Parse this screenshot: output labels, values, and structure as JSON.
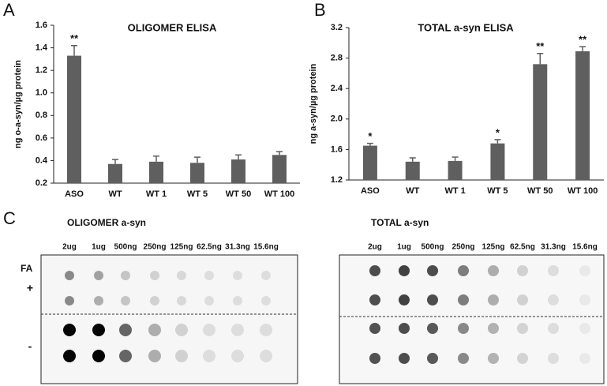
{
  "panel_labels": [
    "A",
    "B",
    "C"
  ],
  "chart_data": [
    {
      "type": "bar",
      "title": "OLIGOMER ELISA",
      "y_label": "ng o-a-syn/µg protein",
      "categories": [
        "ASO",
        "WT",
        "WT 1",
        "WT 5",
        "WT 50",
        "WT 100"
      ],
      "values": [
        1.33,
        0.37,
        0.39,
        0.38,
        0.41,
        0.45
      ],
      "errors": [
        0.09,
        0.04,
        0.05,
        0.05,
        0.04,
        0.03
      ],
      "significance": [
        "**",
        null,
        null,
        null,
        null,
        null
      ],
      "color": "#5f5f5f",
      "ylim": [
        0.2,
        1.6
      ],
      "yticks": [
        0.2,
        0.4,
        0.6,
        0.8,
        {
          "value": 1,
          "label": "1.0"
        },
        1.2,
        1.4,
        1.6
      ]
    },
    {
      "type": "bar",
      "title": "TOTAL a-syn ELISA",
      "y_label": "ng a-syn/µg protein",
      "categories": [
        "ASO",
        "WT",
        "WT 1",
        "WT 5",
        "WT 50",
        "WT 100"
      ],
      "values": [
        1.65,
        1.44,
        1.45,
        1.68,
        2.72,
        2.89
      ],
      "errors": [
        0.03,
        0.05,
        0.05,
        0.05,
        0.14,
        0.06
      ],
      "significance": [
        "*",
        null,
        null,
        "*",
        "**",
        "**"
      ],
      "color": "#5f5f5f",
      "ylim": [
        1.2,
        3.2
      ],
      "yticks": [
        1.2,
        1.6,
        {
          "value": 2,
          "label": "2.0"
        },
        2.4,
        2.8,
        3.2
      ]
    }
  ],
  "blots": [
    {
      "title": "OLIGOMER a-syn",
      "columns": [
        "2ug",
        "1ug",
        "500ng",
        "250ng",
        "125ng",
        "62.5ng",
        "31.3ng",
        "15.6ng"
      ],
      "row_header": "FA",
      "row_labels": [
        "+",
        "-"
      ]
    },
    {
      "title": "TOTAL a-syn",
      "columns": [
        "2ug",
        "1ug",
        "500ng",
        "250ng",
        "125ng",
        "62.5ng",
        "31.3ng",
        "15.6ng"
      ]
    }
  ]
}
